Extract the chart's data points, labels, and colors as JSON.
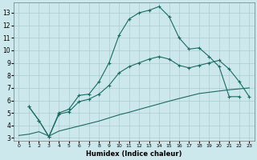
{
  "xlabel": "Humidex (Indice chaleur)",
  "bg_color": "#cde8ec",
  "grid_color": "#aacccc",
  "line_color": "#1a6b62",
  "xlim": [
    -0.5,
    23.5
  ],
  "ylim": [
    2.8,
    13.8
  ],
  "yticks": [
    3,
    4,
    5,
    6,
    7,
    8,
    9,
    10,
    11,
    12,
    13
  ],
  "xticks": [
    0,
    1,
    2,
    3,
    4,
    5,
    6,
    7,
    8,
    9,
    10,
    11,
    12,
    13,
    14,
    15,
    16,
    17,
    18,
    19,
    20,
    21,
    22,
    23
  ],
  "upper_x": [
    1,
    2,
    3,
    4,
    5,
    6,
    7,
    8,
    9,
    10,
    11,
    12,
    13,
    14,
    15,
    16,
    17,
    18,
    19,
    20,
    21,
    22
  ],
  "upper_y": [
    5.5,
    4.4,
    3.1,
    5.0,
    5.3,
    6.4,
    6.5,
    7.5,
    9.0,
    11.2,
    12.5,
    13.0,
    13.2,
    13.5,
    12.7,
    11.0,
    10.1,
    10.2,
    9.5,
    8.7,
    6.3,
    6.3
  ],
  "mid_x": [
    1,
    2,
    3,
    4,
    5,
    6,
    7,
    8,
    9,
    10,
    11,
    12,
    13,
    14,
    15,
    16,
    17,
    18,
    19,
    20,
    21,
    22,
    23
  ],
  "mid_y": [
    5.5,
    4.4,
    3.1,
    4.9,
    5.1,
    5.9,
    6.1,
    6.5,
    7.2,
    8.2,
    8.7,
    9.0,
    9.3,
    9.5,
    9.3,
    8.8,
    8.6,
    8.8,
    9.0,
    9.2,
    8.5,
    7.5,
    6.3
  ],
  "low_x": [
    0,
    1,
    2,
    3,
    4,
    5,
    6,
    7,
    8,
    9,
    10,
    11,
    12,
    13,
    14,
    15,
    16,
    17,
    18,
    19,
    20,
    21,
    22,
    23
  ],
  "low_y": [
    3.2,
    3.3,
    3.5,
    3.15,
    3.55,
    3.75,
    3.95,
    4.15,
    4.35,
    4.6,
    4.85,
    5.05,
    5.28,
    5.5,
    5.72,
    5.94,
    6.15,
    6.35,
    6.55,
    6.65,
    6.75,
    6.85,
    6.92,
    7.0
  ]
}
